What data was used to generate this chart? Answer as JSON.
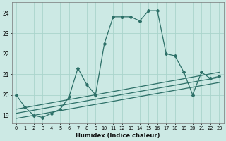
{
  "xlabel": "Humidex (Indice chaleur)",
  "bg_color": "#cce9e4",
  "grid_color": "#aad4cc",
  "line_color": "#2d7068",
  "x_ticks": [
    0,
    1,
    2,
    3,
    4,
    5,
    6,
    7,
    8,
    9,
    10,
    11,
    12,
    13,
    14,
    15,
    16,
    17,
    18,
    19,
    20,
    21,
    22,
    23
  ],
  "ylim": [
    18.6,
    24.5
  ],
  "xlim": [
    -0.5,
    23.5
  ],
  "yticks": [
    19,
    20,
    21,
    22,
    23,
    24
  ],
  "main_line_x": [
    0,
    1,
    2,
    3,
    4,
    5,
    6,
    7,
    8,
    9,
    10,
    11,
    12,
    13,
    14,
    15,
    16,
    17,
    18,
    19,
    20,
    21,
    22,
    23
  ],
  "main_line_y": [
    20.0,
    19.4,
    19.0,
    18.9,
    19.1,
    19.3,
    19.9,
    21.3,
    20.5,
    20.0,
    22.5,
    23.8,
    23.8,
    23.8,
    23.6,
    24.1,
    24.1,
    22.0,
    21.9,
    21.1,
    20.0,
    21.1,
    20.8,
    20.9
  ],
  "line2_start_y": 19.3,
  "line2_end_y": 21.1,
  "line3_start_y": 19.1,
  "line3_end_y": 20.85,
  "line4_start_y": 18.85,
  "line4_end_y": 20.6
}
